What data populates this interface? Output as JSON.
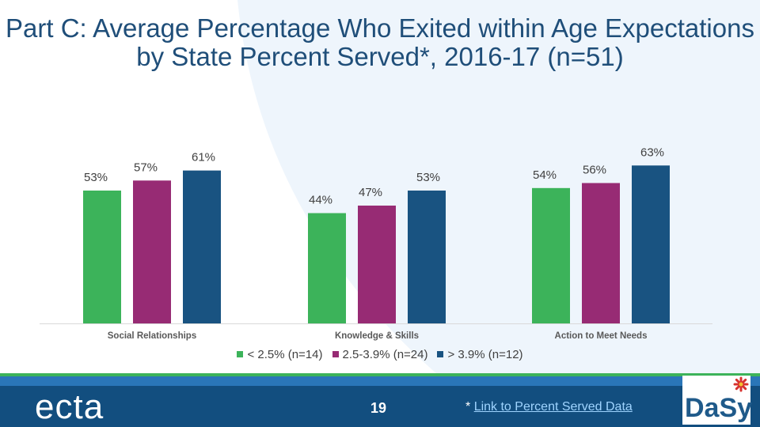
{
  "title": "Part C: Average Percentage Who Exited within Age Expectations by State Percent Served*, 2016-17 (n=51)",
  "chart_data": {
    "type": "bar",
    "categories": [
      "Social Relationships",
      "Knowledge & Skills",
      "Action to Meet Needs"
    ],
    "series": [
      {
        "name": "< 2.5% (n=14)",
        "color": "#3cb35a",
        "values": [
          53,
          44,
          54
        ]
      },
      {
        "name": "2.5-3.9% (n=24)",
        "color": "#972b74",
        "values": [
          57,
          47,
          56
        ]
      },
      {
        "name": "> 3.9% (n=12)",
        "color": "#195381",
        "values": [
          61,
          53,
          63
        ]
      }
    ],
    "value_format": "percent",
    "ylim": [
      0,
      70
    ],
    "grid": false,
    "legend": "bottom"
  },
  "footer": {
    "logo_left": "ecta",
    "page_number": "19",
    "link_prefix": "*",
    "link_text": "Link to Percent Served Data",
    "logo_right": "DaSy"
  }
}
